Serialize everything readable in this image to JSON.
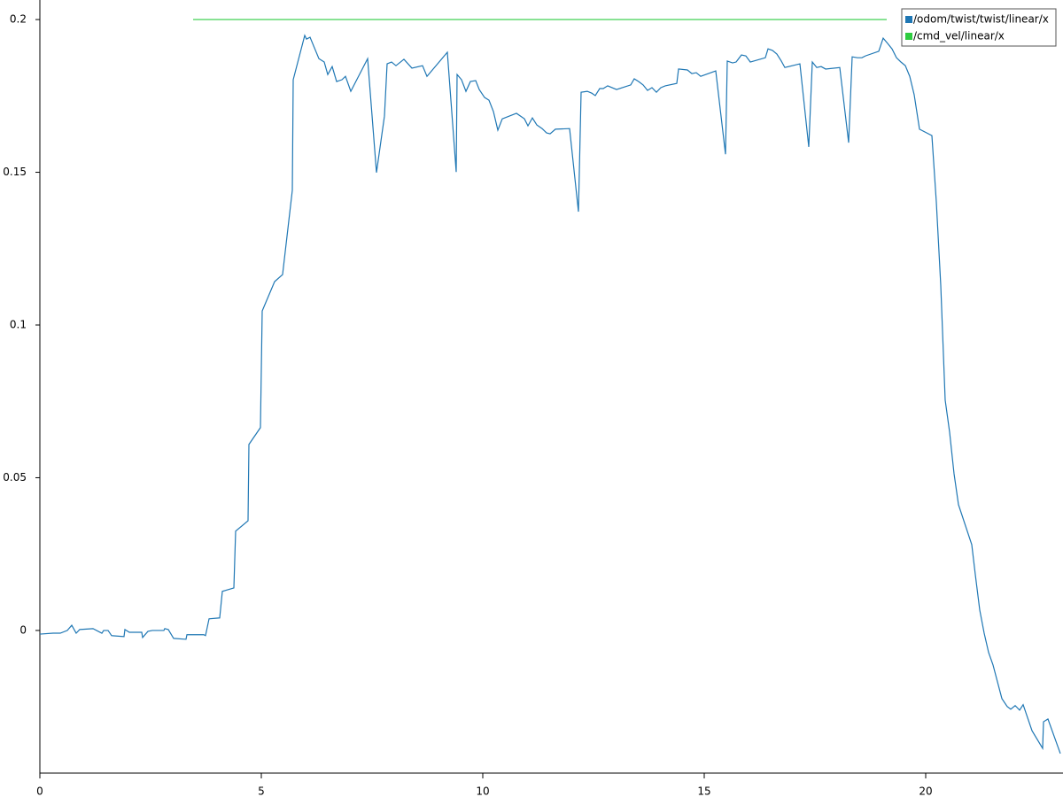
{
  "chart_data": {
    "type": "line",
    "xlim": [
      0,
      23.04
    ],
    "ylim": [
      -0.0467,
      0.2064
    ],
    "xticks": [
      0,
      5,
      10,
      15,
      20
    ],
    "yticks": [
      0,
      0.05,
      0.1,
      0.15,
      0.2
    ],
    "grid": false,
    "legend": "upper right",
    "series": [
      {
        "name": "/odom/twist/twist/linear/x",
        "color": "#1f77b4",
        "x": [
          0,
          0.3,
          0.46,
          0.62,
          0.72,
          0.82,
          0.9,
          1.2,
          1.4,
          1.44,
          1.54,
          1.62,
          1.9,
          1.92,
          2.02,
          2.3,
          2.32,
          2.44,
          2.54,
          2.8,
          2.82,
          2.9,
          3.02,
          3.3,
          3.32,
          3.7,
          3.74,
          3.82,
          4.06,
          4.12,
          4.38,
          4.42,
          4.7,
          4.72,
          4.98,
          5.02,
          5.3,
          5.48,
          5.7,
          5.72,
          5.98,
          6.02,
          6.1,
          6.3,
          6.42,
          6.5,
          6.6,
          6.7,
          6.82,
          6.9,
          7.02,
          7.4,
          7.6,
          7.78,
          7.84,
          7.94,
          8.04,
          8.22,
          8.4,
          8.64,
          8.74,
          9.2,
          9.4,
          9.42,
          9.52,
          9.62,
          9.72,
          9.84,
          9.92,
          10.04,
          10.14,
          10.24,
          10.34,
          10.44,
          10.76,
          10.94,
          11.02,
          11.12,
          11.22,
          11.34,
          11.44,
          11.52,
          11.64,
          11.96,
          12.16,
          12.22,
          12.36,
          12.46,
          12.54,
          12.64,
          12.72,
          12.82,
          13.02,
          13.34,
          13.42,
          13.52,
          13.62,
          13.72,
          13.82,
          13.92,
          14.02,
          14.12,
          14.38,
          14.42,
          14.62,
          14.72,
          14.82,
          14.92,
          15.26,
          15.48,
          15.52,
          15.64,
          15.72,
          15.84,
          15.94,
          16.04,
          16.38,
          16.44,
          16.54,
          16.64,
          16.74,
          16.82,
          17.16,
          17.36,
          17.44,
          17.54,
          17.64,
          17.74,
          18.06,
          18.26,
          18.34,
          18.46,
          18.56,
          18.64,
          18.94,
          19.04,
          19.14,
          19.24,
          19.34,
          19.44,
          19.54,
          19.64,
          19.74,
          19.86,
          20.14,
          20.24,
          20.34,
          20.44,
          20.54,
          20.64,
          20.74,
          21.04,
          21.12,
          21.22,
          21.32,
          21.42,
          21.52,
          21.62,
          21.72,
          21.84,
          21.92,
          22.02,
          22.12,
          22.2,
          22.4,
          22.64,
          22.66,
          22.76,
          23.04
        ],
        "values": [
          -0.0012,
          -0.0009,
          -0.0009,
          0,
          0.0017,
          -0.0009,
          0.0003,
          0.0006,
          -0.0009,
          0,
          0,
          -0.0017,
          -0.002,
          0.0003,
          -0.0006,
          -0.0006,
          -0.0023,
          -0.0003,
          0,
          0,
          0.0006,
          0.0003,
          -0.0026,
          -0.0029,
          -0.0014,
          -0.0014,
          -0.0017,
          0.0038,
          0.0041,
          0.0128,
          0.0139,
          0.0325,
          0.0359,
          0.0609,
          0.0664,
          0.1046,
          0.1142,
          0.1165,
          0.1441,
          0.1803,
          0.1948,
          0.1936,
          0.1942,
          0.1872,
          0.1861,
          0.182,
          0.1846,
          0.1797,
          0.1803,
          0.1814,
          0.1765,
          0.1872,
          0.1499,
          0.1684,
          0.1855,
          0.1861,
          0.1849,
          0.187,
          0.1841,
          0.1849,
          0.1814,
          0.1893,
          0.1501,
          0.182,
          0.1803,
          0.1765,
          0.1797,
          0.18,
          0.1771,
          0.1745,
          0.1736,
          0.1699,
          0.1638,
          0.1675,
          0.1693,
          0.1675,
          0.1652,
          0.1678,
          0.1655,
          0.1643,
          0.1629,
          0.1626,
          0.1641,
          0.1643,
          0.1371,
          0.1762,
          0.1765,
          0.1759,
          0.1751,
          0.1774,
          0.1774,
          0.1783,
          0.1771,
          0.1786,
          0.1806,
          0.1797,
          0.1786,
          0.1768,
          0.1777,
          0.1762,
          0.1777,
          0.1783,
          0.1791,
          0.1838,
          0.1835,
          0.1823,
          0.1826,
          0.1814,
          0.1832,
          0.1559,
          0.1864,
          0.1858,
          0.1861,
          0.1884,
          0.1881,
          0.1861,
          0.1875,
          0.1904,
          0.1899,
          0.1887,
          0.1864,
          0.1843,
          0.1855,
          0.1583,
          0.1861,
          0.1843,
          0.1846,
          0.1838,
          0.1843,
          0.1597,
          0.1878,
          0.1875,
          0.1875,
          0.1881,
          0.1896,
          0.1939,
          0.1922,
          0.1904,
          0.1875,
          0.1861,
          0.1849,
          0.1814,
          0.1754,
          0.1641,
          0.162,
          0.1403,
          0.113,
          0.0754,
          0.0649,
          0.0513,
          0.0412,
          0.0281,
          0.0183,
          0.0067,
          -0.0009,
          -0.0072,
          -0.0113,
          -0.0168,
          -0.0223,
          -0.0249,
          -0.0258,
          -0.0246,
          -0.0261,
          -0.0243,
          -0.0328,
          -0.0386,
          -0.0299,
          -0.029,
          -0.0403
        ]
      },
      {
        "name": "/cmd_vel/linear/x",
        "color": "#2ecc40",
        "x": [
          3.46,
          19.12
        ],
        "values": [
          0.2,
          0.2
        ]
      }
    ]
  }
}
